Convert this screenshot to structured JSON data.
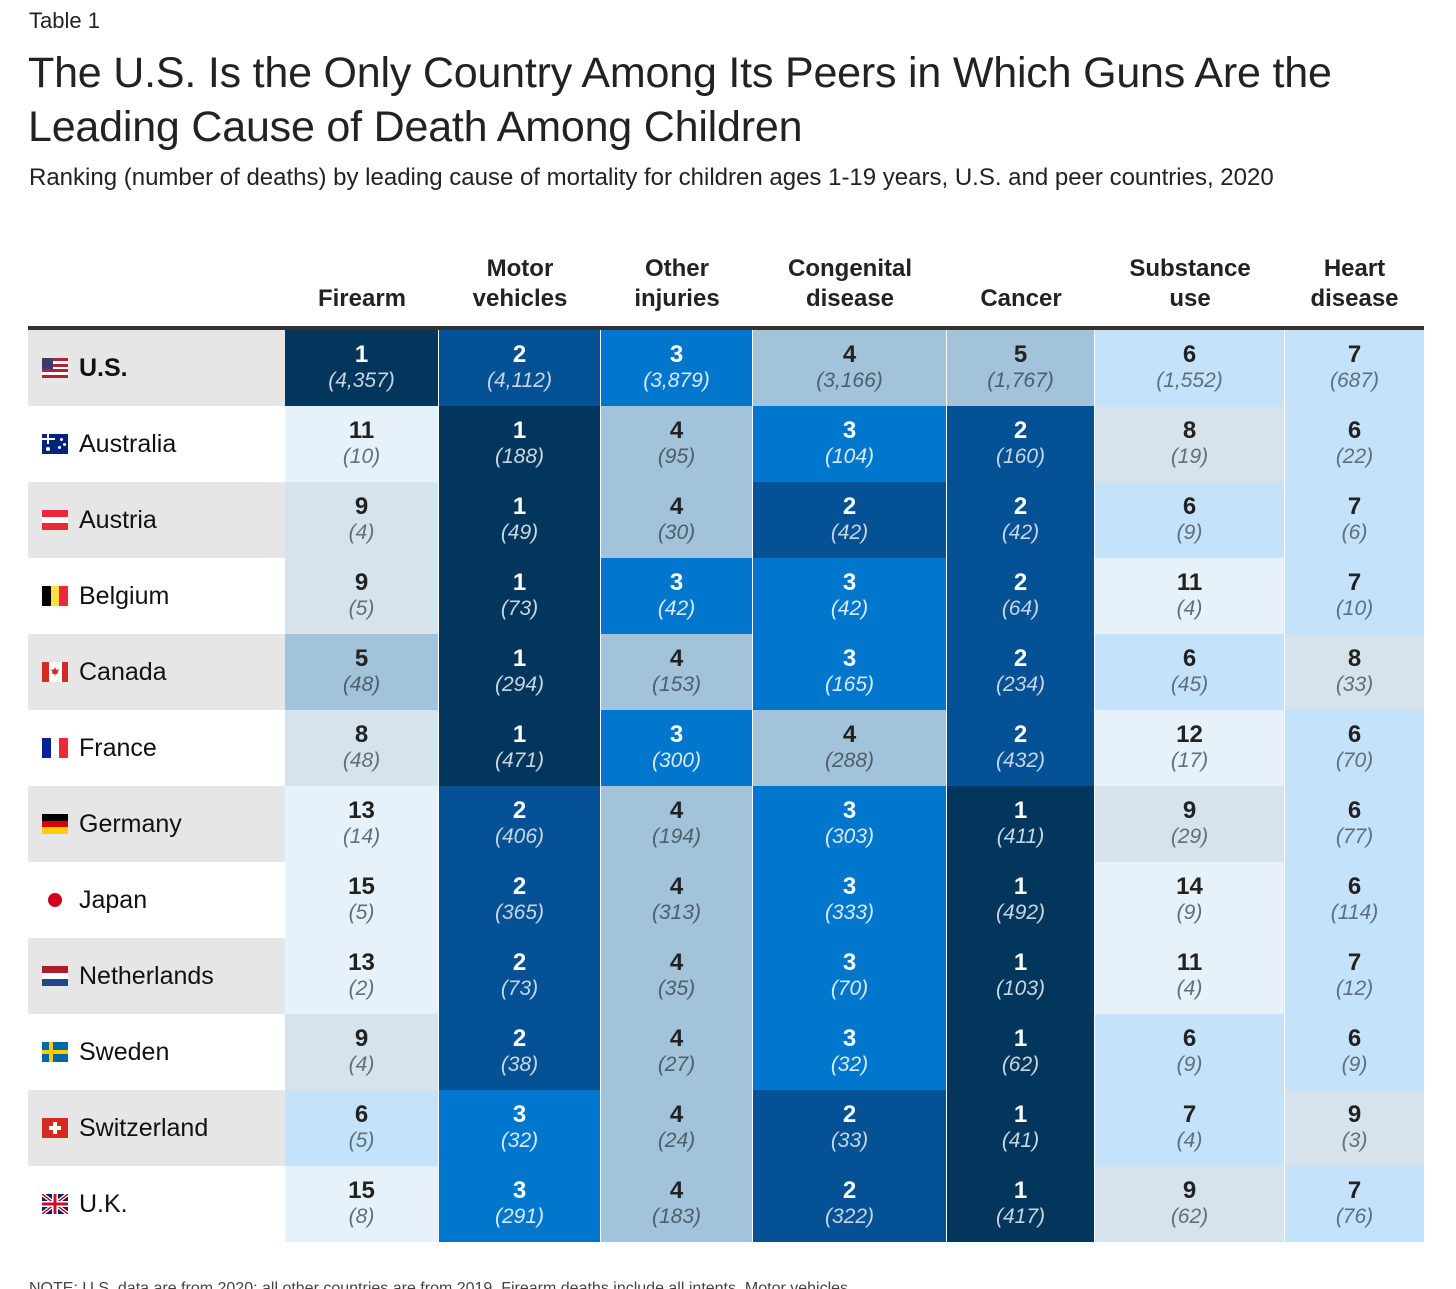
{
  "table_label": "Table 1",
  "title": "The U.S. Is the Only Country Among Its Peers in Which Guns Are the Leading Cause of Death Among Children",
  "subtitle": "Ranking (number of deaths) by leading cause of mortality for children ages 1-19 years, U.S. and peer countries, 2020",
  "footer_note": "NOTE: U.S. data are from 2020; all other countries are from 2019. Firearm deaths include all intents. Motor vehicles...",
  "colors": {
    "rank_1": "#03365c",
    "rank_2": "#045195",
    "rank_3": "#0077cc",
    "rank_4": "#a3c3db",
    "rank_5": "#a3c3db",
    "rank_6_7": "#c4e2fa",
    "rank_8_9": "#d6e3ec",
    "rank_10_plus": "#e6f1fa"
  },
  "chart_data": {
    "type": "table",
    "columns": [
      "Firearm",
      "Motor vehicles",
      "Other injuries",
      "Congenital disease",
      "Cancer",
      "Substance use",
      "Heart disease"
    ],
    "column_headers": [
      [
        "",
        "Firearm"
      ],
      [
        "Motor",
        "vehicles"
      ],
      [
        "Other",
        "injuries"
      ],
      [
        "Congenital",
        "disease"
      ],
      [
        "",
        "Cancer"
      ],
      [
        "Substance",
        "use"
      ],
      [
        "Heart",
        "disease"
      ]
    ],
    "rows": [
      {
        "country": "U.S.",
        "flag": "us-flag-icon",
        "ranks": [
          1,
          2,
          3,
          4,
          5,
          6,
          7
        ],
        "deaths": [
          "(4,357)",
          "(4,112)",
          "(3,879)",
          "(3,166)",
          "(1,767)",
          "(1,552)",
          "(687)"
        ]
      },
      {
        "country": "Australia",
        "flag": "australia-flag-icon",
        "ranks": [
          11,
          1,
          4,
          3,
          2,
          8,
          6
        ],
        "deaths": [
          "(10)",
          "(188)",
          "(95)",
          "(104)",
          "(160)",
          "(19)",
          "(22)"
        ]
      },
      {
        "country": "Austria",
        "flag": "austria-flag-icon",
        "ranks": [
          9,
          1,
          4,
          2,
          2,
          6,
          7
        ],
        "deaths": [
          "(4)",
          "(49)",
          "(30)",
          "(42)",
          "(42)",
          "(9)",
          "(6)"
        ]
      },
      {
        "country": "Belgium",
        "flag": "belgium-flag-icon",
        "ranks": [
          9,
          1,
          3,
          3,
          2,
          11,
          7
        ],
        "deaths": [
          "(5)",
          "(73)",
          "(42)",
          "(42)",
          "(64)",
          "(4)",
          "(10)"
        ]
      },
      {
        "country": "Canada",
        "flag": "canada-flag-icon",
        "ranks": [
          5,
          1,
          4,
          3,
          2,
          6,
          8
        ],
        "deaths": [
          "(48)",
          "(294)",
          "(153)",
          "(165)",
          "(234)",
          "(45)",
          "(33)"
        ]
      },
      {
        "country": "France",
        "flag": "france-flag-icon",
        "ranks": [
          8,
          1,
          3,
          4,
          2,
          12,
          6
        ],
        "deaths": [
          "(48)",
          "(471)",
          "(300)",
          "(288)",
          "(432)",
          "(17)",
          "(70)"
        ]
      },
      {
        "country": "Germany",
        "flag": "germany-flag-icon",
        "ranks": [
          13,
          2,
          4,
          3,
          1,
          9,
          6
        ],
        "deaths": [
          "(14)",
          "(406)",
          "(194)",
          "(303)",
          "(411)",
          "(29)",
          "(77)"
        ]
      },
      {
        "country": "Japan",
        "flag": "japan-flag-icon",
        "ranks": [
          15,
          2,
          4,
          3,
          1,
          14,
          6
        ],
        "deaths": [
          "(5)",
          "(365)",
          "(313)",
          "(333)",
          "(492)",
          "(9)",
          "(114)"
        ]
      },
      {
        "country": "Netherlands",
        "flag": "netherlands-flag-icon",
        "ranks": [
          13,
          2,
          4,
          3,
          1,
          11,
          7
        ],
        "deaths": [
          "(2)",
          "(73)",
          "(35)",
          "(70)",
          "(103)",
          "(4)",
          "(12)"
        ]
      },
      {
        "country": "Sweden",
        "flag": "sweden-flag-icon",
        "ranks": [
          9,
          2,
          4,
          3,
          1,
          6,
          6
        ],
        "deaths": [
          "(4)",
          "(38)",
          "(27)",
          "(32)",
          "(62)",
          "(9)",
          "(9)"
        ]
      },
      {
        "country": "Switzerland",
        "flag": "switzerland-flag-icon",
        "ranks": [
          6,
          3,
          4,
          2,
          1,
          7,
          9
        ],
        "deaths": [
          "(5)",
          "(32)",
          "(24)",
          "(33)",
          "(41)",
          "(4)",
          "(3)"
        ]
      },
      {
        "country": "U.K.",
        "flag": "uk-flag-icon",
        "ranks": [
          15,
          3,
          4,
          2,
          1,
          9,
          7
        ],
        "deaths": [
          "(8)",
          "(291)",
          "(183)",
          "(322)",
          "(417)",
          "(62)",
          "(76)"
        ]
      }
    ]
  }
}
